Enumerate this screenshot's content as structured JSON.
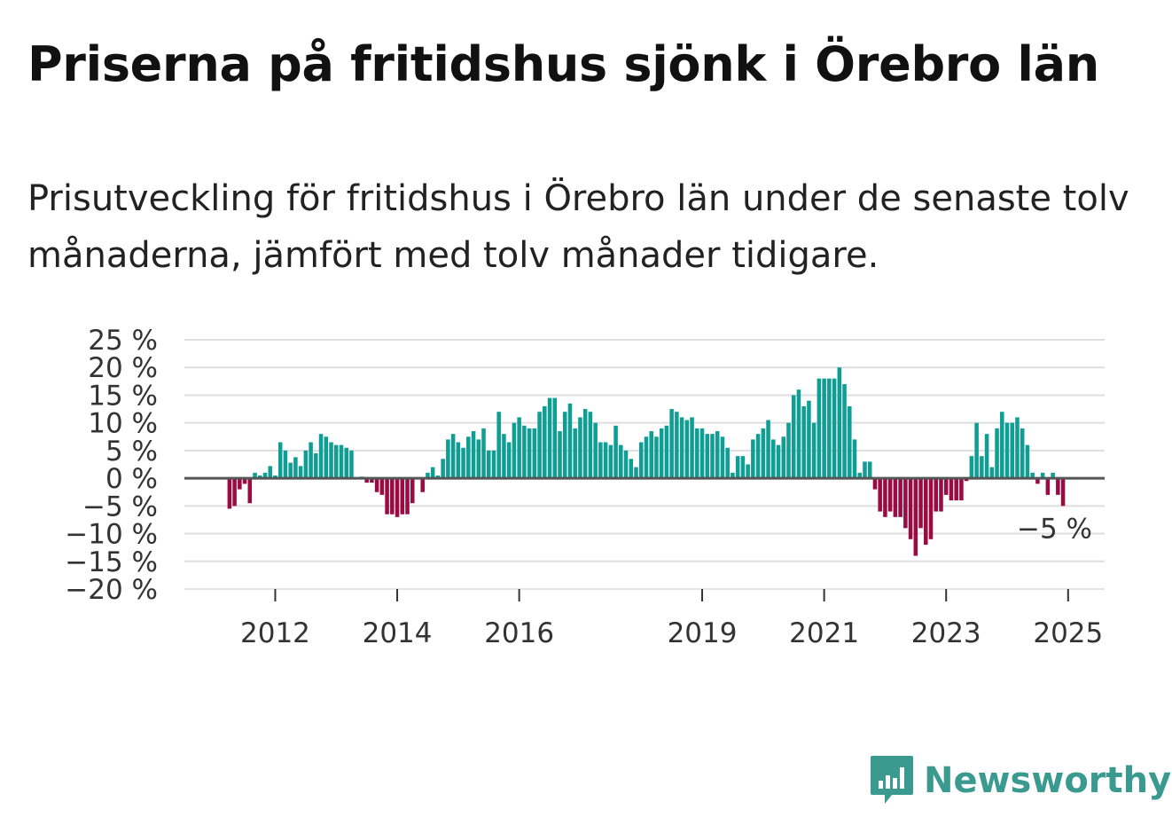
{
  "title": "Priserna på fritidshus sjönk i Örebro län",
  "subtitle": "Prisutveckling för fritidshus i Örebro län under de senaste tolv månaderna, jämfört med tolv månader tidigare.",
  "brand": {
    "name": "Newsworthy",
    "color": "#3a9a90"
  },
  "colors": {
    "positive": "#0f9e94",
    "negative": "#9a0a43",
    "zero_line": "#555555",
    "grid": "#dedede"
  },
  "chart_data": {
    "type": "bar",
    "title": "Priserna på fritidshus sjönk i Örebro län",
    "ylabel": "",
    "xlabel": "",
    "ylim": [
      -20,
      25
    ],
    "y_ticks": [
      "25 %",
      "20 %",
      "15 %",
      "10 %",
      "5 %",
      "0 %",
      "−5 %",
      "−10 %",
      "−15 %",
      "−20 %"
    ],
    "y_tick_values": [
      25,
      20,
      15,
      10,
      5,
      0,
      -5,
      -10,
      -15,
      -20
    ],
    "x_ticks": [
      "2012",
      "2014",
      "2016",
      "2019",
      "2021",
      "2023",
      "2025"
    ],
    "x_tick_index": [
      9,
      33,
      57,
      93,
      117,
      141,
      165
    ],
    "annotation": "−5 %",
    "values": [
      -5.5,
      -5.0,
      -2.0,
      -1.0,
      -4.5,
      1.0,
      0.5,
      1.0,
      2.2,
      0.5,
      6.5,
      5.0,
      2.8,
      3.8,
      2.2,
      5.0,
      6.5,
      4.5,
      8.0,
      7.5,
      6.5,
      6.0,
      6.0,
      5.5,
      5.0,
      0.0,
      0.3,
      -0.8,
      -0.8,
      -2.5,
      -3.0,
      -6.5,
      -6.5,
      -7.0,
      -6.5,
      -6.5,
      -4.5,
      0.0,
      -2.5,
      1.0,
      2.0,
      0.5,
      3.5,
      7.0,
      8.0,
      6.5,
      5.5,
      7.5,
      8.5,
      7.0,
      9.0,
      5.0,
      5.0,
      12.0,
      8.0,
      6.5,
      10.0,
      11.0,
      9.5,
      9.0,
      9.0,
      12.0,
      13.0,
      14.5,
      14.5,
      8.5,
      12.0,
      13.5,
      9.0,
      11.0,
      12.5,
      12.0,
      10.0,
      6.5,
      6.5,
      6.0,
      9.5,
      6.0,
      5.0,
      3.5,
      2.0,
      6.5,
      7.5,
      8.5,
      7.5,
      9.0,
      9.5,
      12.5,
      12.0,
      11.0,
      10.5,
      11.0,
      9.0,
      9.0,
      8.0,
      8.0,
      8.5,
      7.5,
      5.5,
      1.0,
      4.0,
      4.0,
      2.5,
      7.0,
      8.0,
      9.0,
      10.5,
      7.0,
      6.0,
      7.5,
      10.0,
      15.0,
      16.0,
      13.0,
      14.0,
      10.0,
      18.0,
      18.0,
      18.0,
      18.0,
      20.0,
      17.0,
      13.0,
      7.0,
      1.0,
      3.0,
      3.0,
      -2.0,
      -6.0,
      -7.0,
      -6.0,
      -7.0,
      -7.0,
      -9.0,
      -11.0,
      -14.0,
      -9.0,
      -12.0,
      -11.0,
      -6.0,
      -6.0,
      -3.0,
      -4.0,
      -4.0,
      -4.0,
      -0.5,
      4.0,
      10.0,
      4.0,
      8.0,
      2.0,
      9.0,
      12.0,
      10.0,
      10.0,
      11.0,
      9.0,
      6.0,
      1.0,
      -1.0,
      1.0,
      -3.0,
      1.0,
      -3.0,
      -5.0
    ]
  }
}
